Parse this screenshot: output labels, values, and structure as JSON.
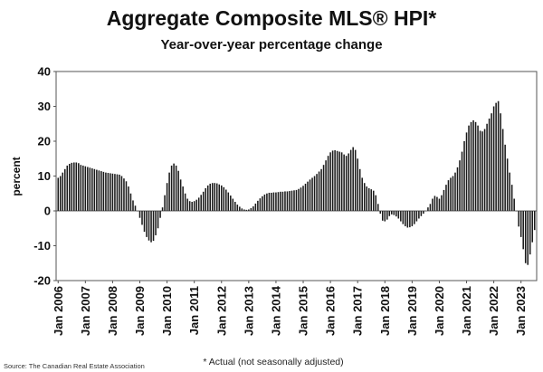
{
  "chart_data": {
    "type": "bar",
    "title": "Aggregate Composite MLS® HPI*",
    "subtitle": "Year-over-year percentage change",
    "ylabel": "percent",
    "ylim": [
      -20,
      40
    ],
    "yticks": [
      "40",
      "30",
      "20",
      "10",
      "0",
      "-10",
      "-20"
    ],
    "xtick_labels": [
      "Jan 2006",
      "Jan 2007",
      "Jan 2008",
      "Jan 2009",
      "Jan 2010",
      "Jan 2011",
      "Jan 2012",
      "Jan 2013",
      "Jan 2014",
      "Jan 2015",
      "Jan 2016",
      "Jan 2017",
      "Jan 2018",
      "Jan 2019",
      "Jan 2020",
      "Jan 2021",
      "Jan 2022",
      "Jan 2023"
    ],
    "grid": false,
    "bar_color": "#1a1a1a",
    "start": "Jan 2006",
    "end": "Jun 2023",
    "values": [
      9.5,
      10.0,
      11.0,
      12.0,
      13.0,
      13.5,
      13.8,
      13.9,
      13.9,
      13.7,
      13.2,
      13.0,
      12.8,
      12.6,
      12.4,
      12.2,
      12.0,
      11.8,
      11.6,
      11.4,
      11.2,
      11.0,
      10.9,
      10.8,
      10.7,
      10.6,
      10.5,
      10.4,
      10.0,
      9.3,
      8.5,
      7.0,
      5.0,
      3.0,
      1.5,
      0.0,
      -2.0,
      -4.0,
      -6.0,
      -7.5,
      -8.5,
      -9.0,
      -8.6,
      -7.0,
      -5.0,
      -2.0,
      1.0,
      4.5,
      8.0,
      11.0,
      13.0,
      13.6,
      13.0,
      11.5,
      9.0,
      7.0,
      5.0,
      3.5,
      2.8,
      2.6,
      2.8,
      3.2,
      3.8,
      4.6,
      5.5,
      6.5,
      7.3,
      7.8,
      8.0,
      8.0,
      7.9,
      7.6,
      7.3,
      6.8,
      6.1,
      5.3,
      4.4,
      3.5,
      2.6,
      1.8,
      1.2,
      0.7,
      0.4,
      0.3,
      0.4,
      0.8,
      1.3,
      2.1,
      2.9,
      3.6,
      4.2,
      4.7,
      5.0,
      5.2,
      5.2,
      5.3,
      5.3,
      5.4,
      5.5,
      5.5,
      5.6,
      5.6,
      5.7,
      5.8,
      5.9,
      6.0,
      6.3,
      6.7,
      7.2,
      7.8,
      8.4,
      9.0,
      9.5,
      10.0,
      10.6,
      11.3,
      12.0,
      13.2,
      14.5,
      15.8,
      16.8,
      17.3,
      17.4,
      17.2,
      17.0,
      16.8,
      16.2,
      15.8,
      16.5,
      17.5,
      18.3,
      17.5,
      15.0,
      12.0,
      9.5,
      8.0,
      7.0,
      6.5,
      6.2,
      5.8,
      4.5,
      2.0,
      -0.8,
      -2.8,
      -3.0,
      -2.5,
      -1.5,
      -1.0,
      -1.2,
      -1.6,
      -2.2,
      -3.0,
      -3.8,
      -4.4,
      -4.8,
      -4.7,
      -4.4,
      -3.8,
      -3.0,
      -2.2,
      -1.5,
      -0.8,
      0.0,
      1.0,
      2.0,
      3.5,
      4.3,
      4.0,
      3.5,
      4.5,
      6.0,
      7.5,
      8.8,
      9.5,
      10.0,
      11.0,
      12.5,
      14.5,
      17.0,
      20.0,
      22.5,
      24.5,
      25.5,
      26.0,
      25.5,
      24.5,
      23.0,
      22.8,
      23.5,
      25.0,
      26.5,
      28.0,
      30.0,
      31.0,
      31.5,
      28.0,
      23.5,
      19.0,
      15.0,
      11.0,
      7.5,
      3.5,
      0.0,
      -4.5,
      -7.5,
      -11.0,
      -15.0,
      -15.5,
      -12.5,
      -9.0,
      -5.5
    ]
  },
  "footer": {
    "source": "Source: The Canadian Real Estate Association",
    "note": "* Actual (not seasonally adjusted)"
  }
}
